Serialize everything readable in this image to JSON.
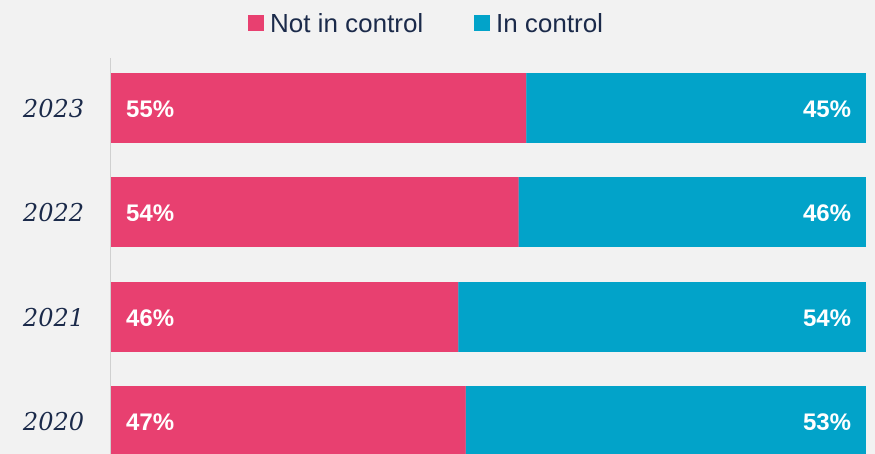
{
  "chart_data": {
    "type": "bar",
    "orientation": "horizontal",
    "stacked": true,
    "percent": true,
    "categories": [
      "2023",
      "2022",
      "2021",
      "2020"
    ],
    "series": [
      {
        "name": "Not in control",
        "color": "#e84070",
        "values": [
          55,
          54,
          46,
          47
        ],
        "labels": [
          "55%",
          "54%",
          "46%",
          "47%"
        ]
      },
      {
        "name": "In control",
        "color": "#02a3c9",
        "values": [
          45,
          46,
          54,
          53
        ],
        "labels": [
          "45%",
          "46%",
          "54%",
          "53%"
        ]
      }
    ],
    "xlim": [
      0,
      100
    ],
    "grid": false,
    "legend_position": "top-center",
    "title": "",
    "xlabel": "",
    "ylabel": ""
  }
}
